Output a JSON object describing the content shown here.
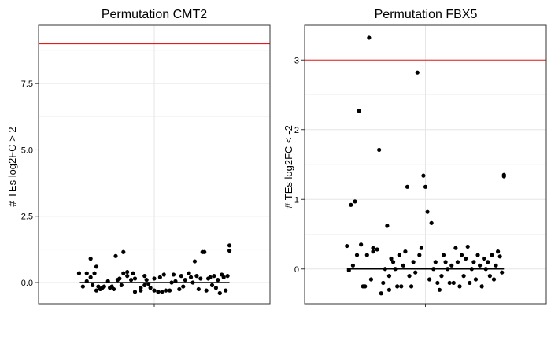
{
  "chart_data": [
    {
      "type": "scatter",
      "title": "Permutation CMT2",
      "xlabel": "",
      "ylabel": "# TEs log2FC > 2",
      "ylim": [
        -0.8,
        9.7
      ],
      "yticks": [
        0.0,
        2.5,
        5.0,
        7.5
      ],
      "ytick_labels": [
        "0.0",
        "2.5",
        "5.0",
        "7.5"
      ],
      "xlim": [
        0.4,
        1.6
      ],
      "xticks": [
        1.0
      ],
      "xtick_labels": [
        ""
      ],
      "grid": true,
      "threshold": {
        "y": 9.0,
        "color": "#e41a1c"
      },
      "trend": {
        "x": [
          0.61,
          1.39
        ],
        "y": [
          0.0,
          0.0
        ],
        "color": "#000000"
      },
      "x": [
        0.61,
        0.63,
        0.65,
        0.65,
        0.67,
        0.67,
        0.68,
        0.69,
        0.7,
        0.7,
        0.71,
        0.72,
        0.73,
        0.74,
        0.76,
        0.77,
        0.78,
        0.79,
        0.8,
        0.81,
        0.82,
        0.83,
        0.84,
        0.84,
        0.86,
        0.86,
        0.88,
        0.89,
        0.9,
        0.9,
        0.93,
        0.93,
        0.95,
        0.95,
        0.96,
        0.97,
        0.98,
        1.0,
        1.0,
        1.02,
        1.03,
        1.04,
        1.05,
        1.06,
        1.08,
        1.09,
        1.1,
        1.11,
        1.13,
        1.14,
        1.15,
        1.16,
        1.18,
        1.19,
        1.2,
        1.21,
        1.22,
        1.23,
        1.24,
        1.25,
        1.26,
        1.27,
        1.28,
        1.29,
        1.3,
        1.31,
        1.32,
        1.33,
        1.34,
        1.35,
        1.36,
        1.37,
        1.38,
        1.39,
        1.39
      ],
      "y": [
        0.35,
        -0.15,
        0.35,
        0.05,
        0.2,
        0.9,
        -0.1,
        0.35,
        -0.3,
        0.6,
        -0.15,
        -0.25,
        -0.2,
        -0.15,
        0.05,
        -0.2,
        -0.15,
        -0.25,
        1.0,
        0.1,
        0.15,
        -0.1,
        1.15,
        0.35,
        0.25,
        0.4,
        0.1,
        0.35,
        -0.35,
        0.15,
        -0.3,
        -0.2,
        0.25,
        -0.1,
        0.1,
        -0.05,
        -0.2,
        -0.3,
        0.15,
        -0.35,
        0.2,
        -0.35,
        0.3,
        -0.3,
        -0.3,
        0.0,
        0.3,
        0.05,
        -0.25,
        0.25,
        -0.15,
        0.1,
        0.35,
        0.2,
        0.0,
        0.8,
        0.25,
        -0.25,
        0.15,
        1.15,
        1.15,
        -0.3,
        0.15,
        0.2,
        -0.1,
        0.25,
        -0.2,
        0.1,
        -0.4,
        0.3,
        0.2,
        -0.3,
        0.25,
        1.4,
        1.2
      ]
    },
    {
      "type": "scatter",
      "title": "Permutation FBX5",
      "xlabel": "",
      "ylabel": "# TEs log2FC < -2",
      "ylim": [
        -0.5,
        3.5
      ],
      "yticks": [
        0,
        1,
        2,
        3
      ],
      "ytick_labels": [
        "0",
        "1",
        "2",
        "3"
      ],
      "xlim": [
        0.4,
        1.6
      ],
      "xticks": [
        1.0
      ],
      "xtick_labels": [
        ""
      ],
      "grid": true,
      "threshold": {
        "y": 3.0,
        "color": "#e41a1c"
      },
      "trend": {
        "x": [
          0.61,
          1.39
        ],
        "y": [
          0.0,
          0.0
        ],
        "color": "#000000"
      },
      "x": [
        0.61,
        0.62,
        0.63,
        0.64,
        0.65,
        0.66,
        0.67,
        0.68,
        0.69,
        0.7,
        0.71,
        0.72,
        0.73,
        0.74,
        0.74,
        0.76,
        0.77,
        0.78,
        0.79,
        0.8,
        0.81,
        0.82,
        0.82,
        0.83,
        0.84,
        0.85,
        0.86,
        0.87,
        0.88,
        0.89,
        0.9,
        0.91,
        0.92,
        0.93,
        0.94,
        0.95,
        0.96,
        0.97,
        0.98,
        0.99,
        1.0,
        1.01,
        1.02,
        1.03,
        1.04,
        1.05,
        1.06,
        1.07,
        1.08,
        1.09,
        1.1,
        1.11,
        1.12,
        1.13,
        1.14,
        1.15,
        1.16,
        1.17,
        1.18,
        1.19,
        1.2,
        1.21,
        1.22,
        1.23,
        1.24,
        1.25,
        1.26,
        1.27,
        1.28,
        1.29,
        1.3,
        1.31,
        1.32,
        1.33,
        1.34,
        1.35,
        1.36,
        1.37,
        1.38,
        1.39,
        1.39
      ],
      "y": [
        0.33,
        -0.02,
        0.92,
        0.05,
        0.97,
        0.2,
        2.27,
        0.35,
        -0.25,
        -0.25,
        0.2,
        3.32,
        -0.15,
        0.3,
        0.25,
        0.28,
        1.71,
        -0.35,
        -0.2,
        0.0,
        0.62,
        -0.3,
        -0.1,
        0.15,
        0.1,
        0.0,
        -0.25,
        0.2,
        -0.25,
        0.05,
        0.25,
        1.18,
        -0.1,
        -0.25,
        0.1,
        -0.05,
        2.82,
        0.2,
        0.3,
        1.34,
        1.18,
        0.82,
        -0.15,
        0.66,
        0.0,
        0.1,
        -0.2,
        -0.3,
        -0.1,
        0.2,
        0.1,
        0.0,
        -0.2,
        0.05,
        -0.2,
        0.3,
        0.1,
        -0.25,
        0.2,
        -0.1,
        0.15,
        0.32,
        -0.2,
        0.0,
        0.1,
        -0.15,
        0.2,
        0.05,
        -0.25,
        0.15,
        0.0,
        0.1,
        -0.1,
        0.2,
        -0.15,
        0.05,
        0.25,
        0.18,
        -0.05,
        1.33,
        1.35
      ]
    }
  ]
}
